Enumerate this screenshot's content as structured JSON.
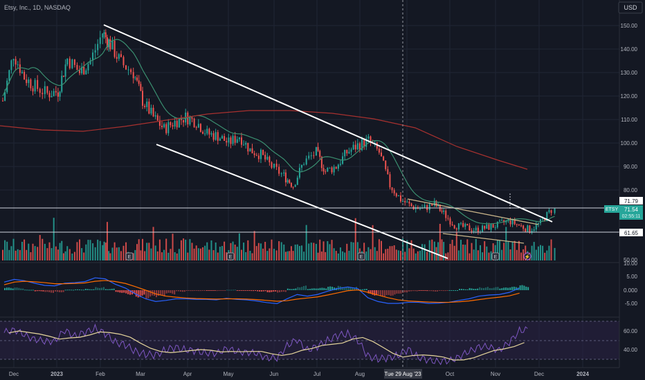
{
  "header": {
    "symbol_text": "Etsy, Inc., 1D, NASDAQ",
    "currency": "USD"
  },
  "colors": {
    "background": "#141823",
    "grid": "#202634",
    "axis_text": "#b2b5be",
    "up": "#26a69a",
    "down": "#ef5350",
    "sma50": "#3a8f70",
    "sma200": "#a8312f",
    "channel": "#ffffff",
    "wedge": "#c9b58a",
    "macd": "#2962ff",
    "signal": "#ff6d00",
    "rsi": "#7e57c2",
    "rsi_ma": "#e6d69c",
    "rsi_band": "#2a2346",
    "price_tag_bg": "#26a69a",
    "level_tag_bg": "#ffffff"
  },
  "price_axis": {
    "ticks": [
      "150.00",
      "140.00",
      "130.00",
      "120.00",
      "110.00",
      "100.00",
      "90.00",
      "80.00",
      "50.00"
    ],
    "current_price": "71.54",
    "countdown": "02:55:11",
    "ticker_tag": "ETSY",
    "level_high": "71.79",
    "level_low": "61.65"
  },
  "macd_axis": {
    "ticks": [
      "10.00",
      "5.00",
      "0.000",
      "-5.00"
    ]
  },
  "rsi_axis": {
    "ticks": [
      "60.00",
      "40.00"
    ]
  },
  "time_axis": {
    "ticks": [
      "Dec",
      "2023",
      "Feb",
      "Mar",
      "Apr",
      "May",
      "Jun",
      "Jul",
      "Aug",
      "Oct",
      "Nov",
      "Dec",
      "2024"
    ],
    "crosshair_label": "Tue 29 Aug '23"
  },
  "chart_data": {
    "type": "candlestick",
    "series_prices": [
      {
        "date": "2022-11-28",
        "close": 118
      },
      {
        "date": "2022-12-05",
        "close": 138
      },
      {
        "date": "2022-12-12",
        "close": 128
      },
      {
        "date": "2022-12-19",
        "close": 124
      },
      {
        "date": "2022-12-27",
        "close": 121
      },
      {
        "date": "2023-01-03",
        "close": 122
      },
      {
        "date": "2023-01-09",
        "close": 136
      },
      {
        "date": "2023-01-17",
        "close": 130
      },
      {
        "date": "2023-01-24",
        "close": 135
      },
      {
        "date": "2023-02-01",
        "close": 147
      },
      {
        "date": "2023-02-06",
        "close": 142
      },
      {
        "date": "2023-02-13",
        "close": 134
      },
      {
        "date": "2023-02-21",
        "close": 130
      },
      {
        "date": "2023-02-27",
        "close": 118
      },
      {
        "date": "2023-03-06",
        "close": 111
      },
      {
        "date": "2023-03-13",
        "close": 106
      },
      {
        "date": "2023-03-20",
        "close": 109
      },
      {
        "date": "2023-03-27",
        "close": 111
      },
      {
        "date": "2023-04-03",
        "close": 109
      },
      {
        "date": "2023-04-10",
        "close": 104
      },
      {
        "date": "2023-04-17",
        "close": 103
      },
      {
        "date": "2023-04-24",
        "close": 100
      },
      {
        "date": "2023-05-01",
        "close": 103
      },
      {
        "date": "2023-05-08",
        "close": 97
      },
      {
        "date": "2023-05-15",
        "close": 95
      },
      {
        "date": "2023-05-22",
        "close": 90
      },
      {
        "date": "2023-05-30",
        "close": 86
      },
      {
        "date": "2023-06-05",
        "close": 82
      },
      {
        "date": "2023-06-12",
        "close": 92
      },
      {
        "date": "2023-06-20",
        "close": 96
      },
      {
        "date": "2023-06-26",
        "close": 88
      },
      {
        "date": "2023-07-03",
        "close": 90
      },
      {
        "date": "2023-07-10",
        "close": 96
      },
      {
        "date": "2023-07-17",
        "close": 99
      },
      {
        "date": "2023-07-24",
        "close": 101
      },
      {
        "date": "2023-07-31",
        "close": 96
      },
      {
        "date": "2023-08-07",
        "close": 82
      },
      {
        "date": "2023-08-14",
        "close": 76
      },
      {
        "date": "2023-08-21",
        "close": 73
      },
      {
        "date": "2023-08-28",
        "close": 72
      },
      {
        "date": "2023-09-05",
        "close": 74
      },
      {
        "date": "2023-09-11",
        "close": 70
      },
      {
        "date": "2023-09-18",
        "close": 65
      },
      {
        "date": "2023-09-25",
        "close": 64
      },
      {
        "date": "2023-10-02",
        "close": 63
      },
      {
        "date": "2023-10-09",
        "close": 64
      },
      {
        "date": "2023-10-16",
        "close": 65
      },
      {
        "date": "2023-10-23",
        "close": 67
      },
      {
        "date": "2023-10-30",
        "close": 65
      },
      {
        "date": "2023-11-06",
        "close": 63
      },
      {
        "date": "2023-11-13",
        "close": 66
      },
      {
        "date": "2023-11-20",
        "close": 71.54
      }
    ],
    "rsi": [
      58,
      62,
      55,
      52,
      48,
      50,
      60,
      55,
      58,
      63,
      57,
      48,
      45,
      38,
      35,
      34,
      40,
      42,
      40,
      38,
      37,
      35,
      42,
      37,
      38,
      35,
      32,
      30,
      45,
      50,
      40,
      43,
      50,
      55,
      57,
      50,
      33,
      30,
      31,
      34,
      40,
      32,
      28,
      28,
      27,
      33,
      37,
      44,
      42,
      40,
      47,
      61
    ],
    "macd": [
      3,
      4,
      3.5,
      2.6,
      1.8,
      1.6,
      2.6,
      2.8,
      3.2,
      4.6,
      4.2,
      2.2,
      0.8,
      -1.4,
      -3.2,
      -4.2,
      -3.8,
      -3.2,
      -3.2,
      -3.4,
      -3.4,
      -3.6,
      -3.0,
      -3.4,
      -3.6,
      -4.0,
      -4.6,
      -5.0,
      -3.2,
      -1.6,
      -2.2,
      -1.6,
      -0.4,
      0.6,
      1.2,
      0.6,
      -2.8,
      -4.2,
      -4.9,
      -4.9,
      -4.5,
      -4.5,
      -4.9,
      -4.8,
      -4.5,
      -3.8,
      -3.2,
      -2.2,
      -1.8,
      -1.6,
      -0.8,
      0.8
    ],
    "signal": [
      2,
      3,
      3.3,
      3.1,
      2.8,
      2.4,
      2.4,
      2.5,
      2.7,
      3.3,
      3.6,
      3.2,
      2.5,
      1.3,
      0,
      -1.4,
      -2.2,
      -2.6,
      -2.9,
      -3.1,
      -3.2,
      -3.3,
      -3.2,
      -3.2,
      -3.3,
      -3.5,
      -3.8,
      -4.1,
      -3.9,
      -3.3,
      -2.9,
      -2.5,
      -1.8,
      -1.0,
      -0.2,
      0.1,
      -0.8,
      -1.8,
      -2.8,
      -3.6,
      -4.0,
      -4.2,
      -4.4,
      -4.5,
      -4.5,
      -4.3,
      -4.0,
      -3.5,
      -3.0,
      -2.6,
      -2.1,
      -1.1
    ]
  }
}
